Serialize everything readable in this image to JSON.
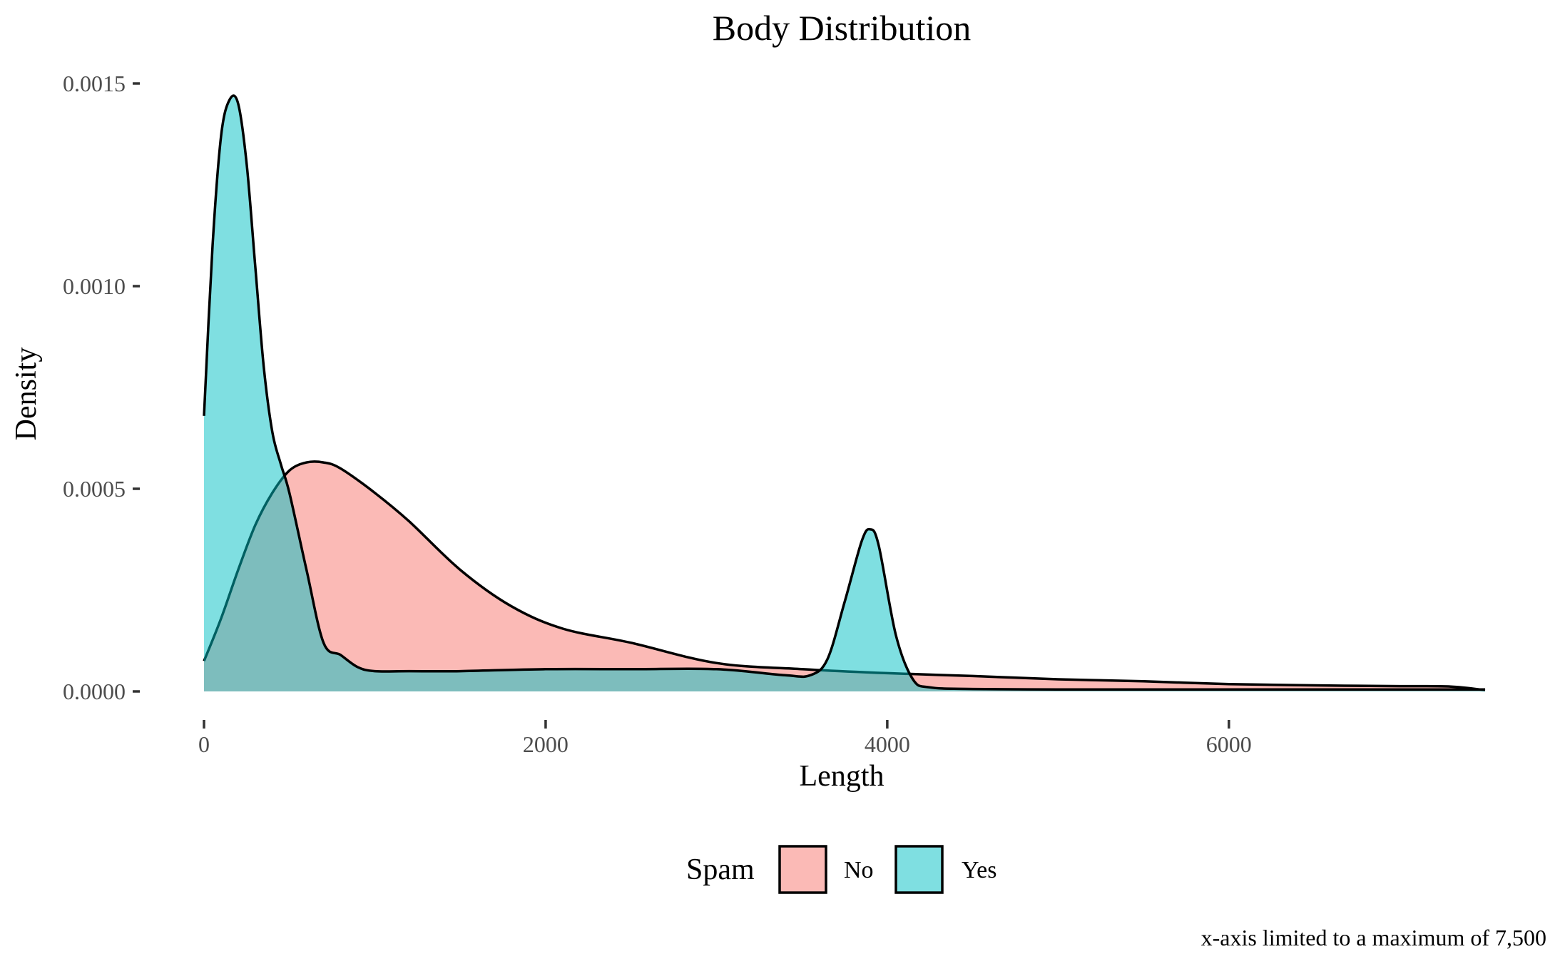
{
  "chart_data": {
    "type": "area",
    "title": "Body Distribution",
    "xlabel": "Length",
    "ylabel": "Density",
    "caption": "x-axis limited to a maximum of 7,500",
    "xlim": [
      0,
      7500
    ],
    "ylim": [
      0,
      0.0015
    ],
    "x_ticks": [
      0,
      2000,
      4000,
      6000
    ],
    "x_tick_labels": [
      "0",
      "2000",
      "4000",
      "6000"
    ],
    "y_ticks": [
      0,
      0.0005,
      0.001,
      0.0015
    ],
    "y_tick_labels": [
      "0.0000",
      "0.0005",
      "0.0010",
      "0.0015"
    ],
    "grid": false,
    "legend": {
      "title": "Spam",
      "placement": "bottom",
      "entries": [
        {
          "label": "No",
          "color": "#F8766D"
        },
        {
          "label": "Yes",
          "color": "#00BFC4"
        }
      ]
    },
    "series": [
      {
        "name": "No",
        "color": "#F8766D",
        "x": [
          0,
          100,
          200,
          300,
          400,
          500,
          600,
          700,
          800,
          1000,
          1200,
          1500,
          1800,
          2100,
          2500,
          3000,
          3500,
          4000,
          4500,
          5000,
          5500,
          6000,
          6500,
          7000,
          7300,
          7500
        ],
        "y": [
          7.5e-05,
          0.00018,
          0.0003,
          0.00041,
          0.00049,
          0.000545,
          0.000565,
          0.000565,
          0.00055,
          0.00049,
          0.00042,
          0.0003,
          0.00021,
          0.000155,
          0.00012,
          7e-05,
          5.5e-05,
          4.5e-05,
          3.8e-05,
          3e-05,
          2.5e-05,
          1.8e-05,
          1.5e-05,
          1.3e-05,
          1.2e-05,
          3e-06
        ]
      },
      {
        "name": "Yes",
        "color": "#00BFC4",
        "x": [
          0,
          50,
          100,
          150,
          200,
          250,
          300,
          350,
          400,
          450,
          500,
          600,
          700,
          800,
          900,
          1000,
          1200,
          1500,
          2000,
          2500,
          3000,
          3400,
          3550,
          3650,
          3750,
          3850,
          3900,
          3950,
          4050,
          4150,
          4250,
          4500,
          5000,
          5500,
          6000,
          6500,
          7000,
          7500
        ],
        "y": [
          0.00068,
          0.0011,
          0.00137,
          0.00146,
          0.00145,
          0.0013,
          0.00105,
          0.0008,
          0.00064,
          0.00056,
          0.00049,
          0.0003,
          0.00012,
          9e-05,
          6e-05,
          5e-05,
          5e-05,
          5e-05,
          5.5e-05,
          5.5e-05,
          5.5e-05,
          4e-05,
          4e-05,
          8e-05,
          0.00022,
          0.00037,
          0.0004,
          0.00036,
          0.00014,
          3e-05,
          1e-05,
          6e-06,
          5e-06,
          5e-06,
          5e-06,
          5e-06,
          5e-06,
          5e-06
        ]
      }
    ]
  }
}
